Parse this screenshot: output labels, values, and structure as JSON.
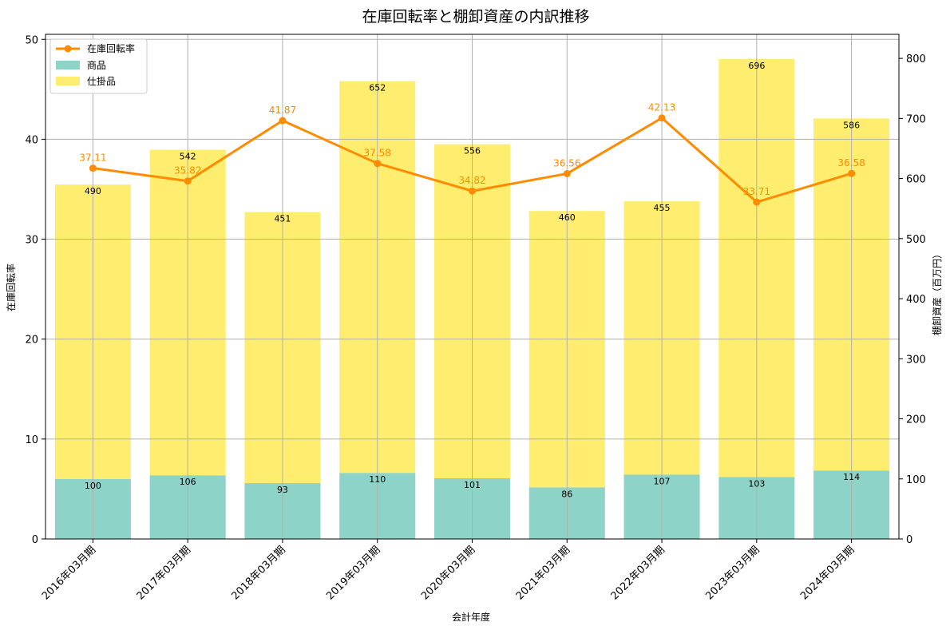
{
  "chart_data": {
    "type": "bar",
    "stacked": true,
    "title": "在庫回転率と棚卸資産の内訳推移",
    "xlabel": "会計年度",
    "ylabel_left": "在庫回転率",
    "ylabel_right": "棚卸資産（百万円）",
    "ylim_left": [
      0,
      50.5
    ],
    "ylim_right": [
      0,
      840
    ],
    "yticks_left": [
      0,
      10,
      20,
      30,
      40,
      50
    ],
    "yticks_right": [
      0,
      100,
      200,
      300,
      400,
      500,
      600,
      700,
      800
    ],
    "grid": true,
    "legend_position": "top-left",
    "categories": [
      "2016年03月期",
      "2017年03月期",
      "2018年03月期",
      "2019年03月期",
      "2020年03月期",
      "2021年03月期",
      "2022年03月期",
      "2023年03月期",
      "2024年03月期"
    ],
    "series": [
      {
        "name": "商品",
        "kind": "bar",
        "axis": "right",
        "color": "#8dd3c7",
        "values": [
          100,
          106,
          93,
          110,
          101,
          86,
          107,
          103,
          114
        ]
      },
      {
        "name": "仕掛品",
        "kind": "bar",
        "axis": "right",
        "color": "#ffed6f",
        "values": [
          490,
          542,
          451,
          652,
          556,
          460,
          455,
          696,
          586
        ]
      },
      {
        "name": "在庫回転率",
        "kind": "line",
        "axis": "left",
        "color": "#ff8c00",
        "values": [
          37.11,
          35.82,
          41.87,
          37.58,
          34.82,
          36.56,
          42.13,
          33.71,
          36.58
        ]
      }
    ]
  }
}
